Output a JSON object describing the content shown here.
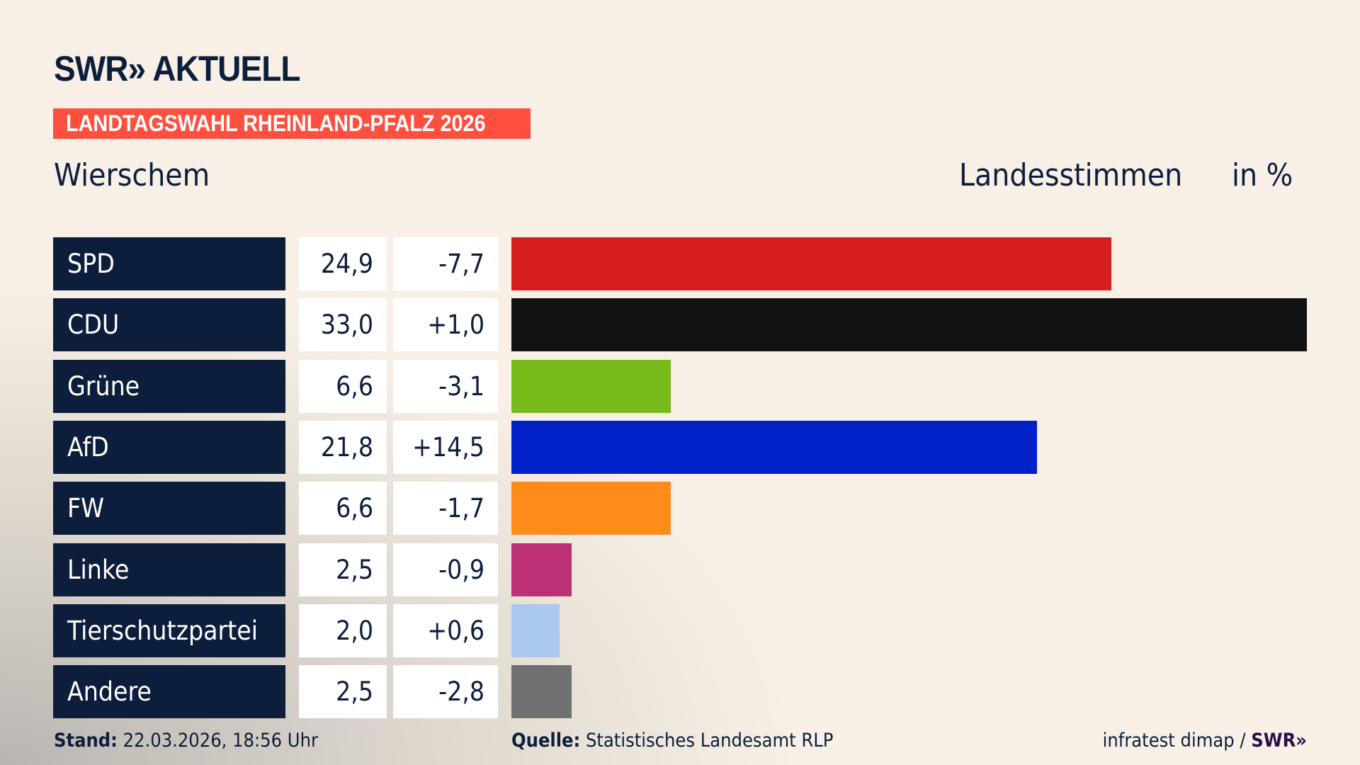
{
  "brand": {
    "logo": "SWR» AKTUELL"
  },
  "banner": "LANDTAGSWAHL RHEINLAND-PFALZ 2026",
  "header": {
    "place": "Wierschem",
    "measure": "Landesstimmen",
    "unit": "in %"
  },
  "chart_data": {
    "type": "bar",
    "orientation": "horizontal",
    "categories": [
      "SPD",
      "CDU",
      "Grüne",
      "AfD",
      "FW",
      "Linke",
      "Tierschutzpartei",
      "Andere"
    ],
    "values": [
      24.9,
      33.0,
      6.6,
      21.8,
      6.6,
      2.5,
      2.0,
      2.5
    ],
    "value_labels": [
      "24,9",
      "33,0",
      "6,6",
      "21,8",
      "6,6",
      "2,5",
      "2,0",
      "2,5"
    ],
    "diff_labels": [
      "-7,7",
      "+1,0",
      "-3,1",
      "+14,5",
      "-1,7",
      "-0,9",
      "+0,6",
      "-2,8"
    ],
    "colors": [
      "#d81f20",
      "#121212",
      "#78bc1b",
      "#0021c8",
      "#ff8c1a",
      "#bd3075",
      "#abc8ef",
      "#707070"
    ],
    "xlim": [
      0,
      33.0
    ],
    "grid": false
  },
  "footer": {
    "stand_label": "Stand:",
    "stand_value": "22.03.2026, 18:56 Uhr",
    "source_label": "Quelle:",
    "source_value": "Statistisches Landesamt RLP",
    "credit": "infratest dimap / ",
    "credit_logo": "SWR»"
  }
}
